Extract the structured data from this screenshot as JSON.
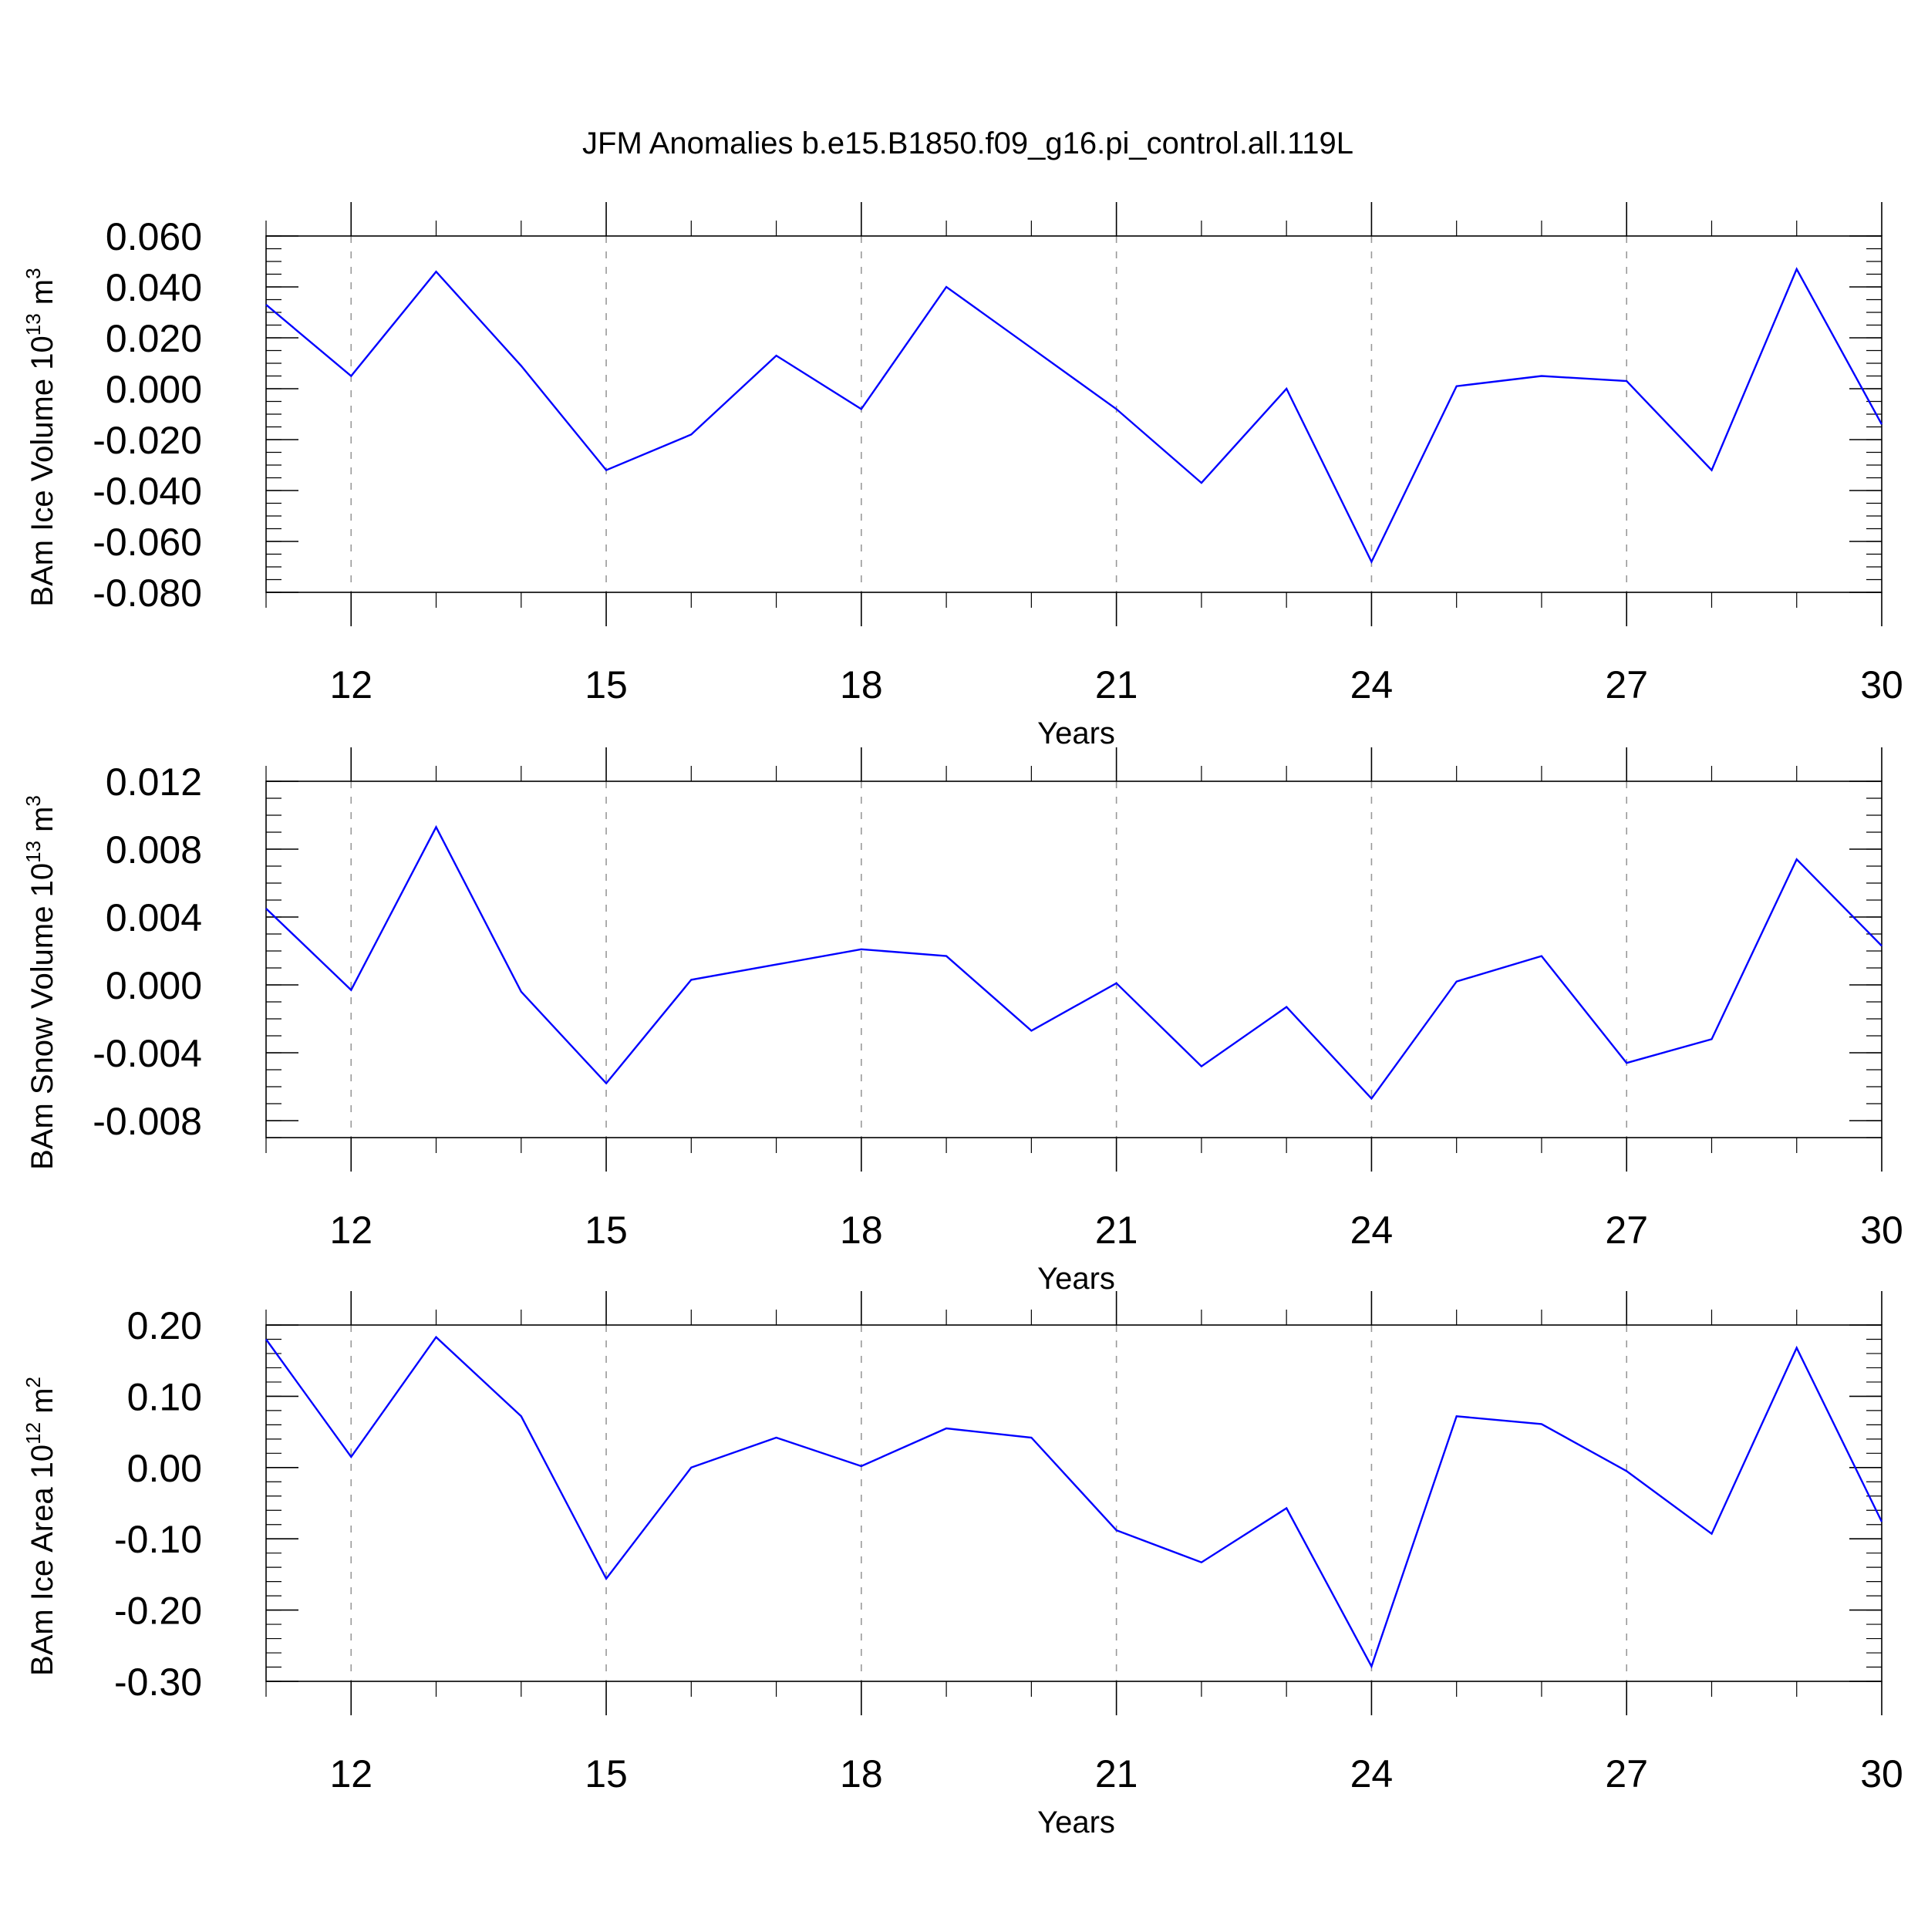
{
  "title": "JFM Anomalies b.e15.B1850.f09_g16.pi_control.all.119L",
  "colors": {
    "line": "#0000ff",
    "grid": "#999999",
    "axis": "#000000"
  },
  "chart_data": [
    {
      "type": "line",
      "title": "JFM Anomalies b.e15.B1850.f09_g16.pi_control.all.119L",
      "xlabel": "Years",
      "ylabel": "BAm Ice Volume 10",
      "ylabel_exp": "13",
      "ylabel_unit": " m",
      "ylabel_unit_exp": "3",
      "xlim": [
        11,
        30
      ],
      "ylim": [
        -0.08,
        0.06
      ],
      "x_ticks": [
        12,
        15,
        18,
        21,
        24,
        27,
        30
      ],
      "x_tick_labels": [
        "12",
        "15",
        "18",
        "21",
        "24",
        "27",
        "30"
      ],
      "y_ticks": [
        0.06,
        0.04,
        0.02,
        0.0,
        -0.02,
        -0.04,
        -0.06,
        -0.08
      ],
      "y_tick_labels": [
        "0.060",
        "0.040",
        "0.020",
        "0.000",
        "-0.020",
        "-0.040",
        "-0.060",
        "-0.080"
      ],
      "y_minor_step": 0.005,
      "grid": "vertical dashed at major x ticks",
      "x": [
        11,
        12,
        13,
        14,
        15,
        16,
        17,
        18,
        19,
        20,
        21,
        22,
        23,
        24,
        25,
        26,
        27,
        28,
        29,
        30
      ],
      "series": [
        {
          "name": "BAm Ice Volume",
          "values": [
            0.033,
            0.005,
            0.046,
            0.009,
            -0.032,
            -0.018,
            0.013,
            -0.008,
            0.04,
            0.016,
            -0.008,
            -0.037,
            0.0,
            -0.068,
            0.001,
            0.005,
            0.003,
            -0.032,
            0.047,
            -0.014
          ]
        }
      ]
    },
    {
      "type": "line",
      "xlabel": "Years",
      "ylabel": "BAm Snow Volume 10",
      "ylabel_exp": "13",
      "ylabel_unit": " m",
      "ylabel_unit_exp": "3",
      "xlim": [
        11,
        30
      ],
      "ylim": [
        -0.009,
        0.012
      ],
      "x_ticks": [
        12,
        15,
        18,
        21,
        24,
        27,
        30
      ],
      "x_tick_labels": [
        "12",
        "15",
        "18",
        "21",
        "24",
        "27",
        "30"
      ],
      "y_ticks": [
        0.012,
        0.008,
        0.004,
        0.0,
        -0.004,
        -0.008
      ],
      "y_tick_labels": [
        "0.012",
        "0.008",
        "0.004",
        "0.000",
        "-0.004",
        "-0.008"
      ],
      "y_minor_step": 0.001,
      "grid": "vertical dashed at major x ticks",
      "x": [
        11,
        12,
        13,
        14,
        15,
        16,
        17,
        18,
        19,
        20,
        21,
        22,
        23,
        24,
        25,
        26,
        27,
        28,
        29,
        30
      ],
      "series": [
        {
          "name": "BAm Snow Volume",
          "values": [
            0.0045,
            -0.0003,
            0.0093,
            -0.0004,
            -0.0058,
            0.0003,
            0.0012,
            0.0021,
            0.0017,
            -0.0027,
            0.0001,
            -0.0048,
            -0.0013,
            -0.0067,
            0.0002,
            0.0017,
            -0.0046,
            -0.0032,
            0.0074,
            0.0023
          ]
        }
      ]
    },
    {
      "type": "line",
      "xlabel": "Years",
      "ylabel": "BAm Ice Area 10",
      "ylabel_exp": "12",
      "ylabel_unit": " m",
      "ylabel_unit_exp": "2",
      "xlim": [
        11,
        30
      ],
      "ylim": [
        -0.3,
        0.2
      ],
      "x_ticks": [
        12,
        15,
        18,
        21,
        24,
        27,
        30
      ],
      "x_tick_labels": [
        "12",
        "15",
        "18",
        "21",
        "24",
        "27",
        "30"
      ],
      "y_ticks": [
        0.2,
        0.1,
        0.0,
        -0.1,
        -0.2,
        -0.3
      ],
      "y_tick_labels": [
        "0.20",
        "0.10",
        "0.00",
        "-0.10",
        "-0.20",
        "-0.30"
      ],
      "y_minor_step": 0.02,
      "grid": "vertical dashed at major x ticks",
      "x": [
        11,
        12,
        13,
        14,
        15,
        16,
        17,
        18,
        19,
        20,
        21,
        22,
        23,
        24,
        25,
        26,
        27,
        28,
        29,
        30
      ],
      "series": [
        {
          "name": "BAm Ice Area",
          "values": [
            0.18,
            0.015,
            0.183,
            0.072,
            -0.156,
            0.0,
            0.042,
            0.002,
            0.055,
            0.042,
            -0.088,
            -0.133,
            -0.057,
            -0.279,
            0.072,
            0.061,
            -0.005,
            -0.093,
            0.168,
            -0.076
          ]
        }
      ]
    }
  ]
}
